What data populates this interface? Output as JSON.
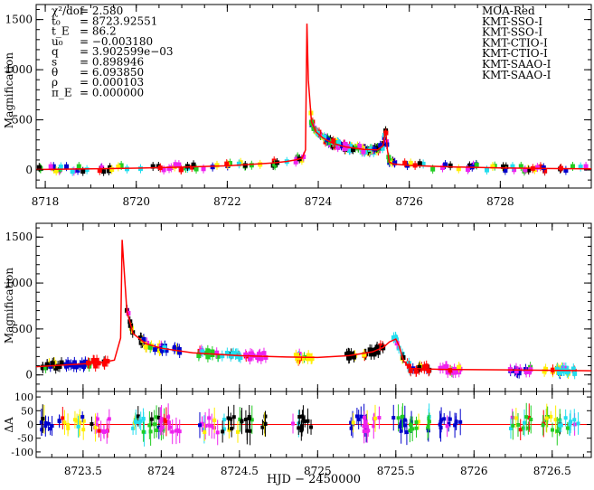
{
  "chart_data": [
    {
      "type": "line",
      "panel": "top",
      "ylabel": "Magnification",
      "xlim": [
        8717.8,
        8730.0
      ],
      "ylim": [
        -180,
        1650
      ],
      "xticks": [
        8718,
        8720,
        8722,
        8724,
        8726,
        8728
      ],
      "yticks": [
        0,
        500,
        1000,
        1500
      ],
      "params": [
        {
          "label": "χ²/dof",
          "value": "= 2.580"
        },
        {
          "label": "t₀",
          "value": "= 8723.92551"
        },
        {
          "label": "t_E",
          "value": "= 86.2"
        },
        {
          "label": "u₀",
          "value": "= −0.003180"
        },
        {
          "label": "q",
          "value": "= 3.902599e−03"
        },
        {
          "label": "s",
          "value": "= 0.898946"
        },
        {
          "label": "θ",
          "value": "= 6.093850"
        },
        {
          "label": "ρ",
          "value": "= 0.000103"
        },
        {
          "label": "π_E",
          "value": "= 0.000000"
        }
      ],
      "legend": [
        {
          "name": "MOA-Red",
          "color": "#000000"
        },
        {
          "name": "KMT-SSO-I",
          "color": "#ff0000"
        },
        {
          "name": "KMT-SSO-I",
          "color": "#22cc22"
        },
        {
          "name": "KMT-CTIO-I",
          "color": "#0000cc"
        },
        {
          "name": "KMT-CTIO-I",
          "color": "#22ddee"
        },
        {
          "name": "KMT-SAAO-I",
          "color": "#ee22ee"
        },
        {
          "name": "KMT-SAAO-I",
          "color": "#ffee00"
        }
      ],
      "model": {
        "color": "#ff0000",
        "x": [
          8717.8,
          8719,
          8720,
          8721,
          8722,
          8722.5,
          8723,
          8723.3,
          8723.5,
          8723.65,
          8723.72,
          8723.75,
          8723.78,
          8723.85,
          8723.95,
          8724.1,
          8724.3,
          8724.6,
          8725.0,
          8725.3,
          8725.42,
          8725.48,
          8725.52,
          8725.56,
          8725.65,
          8726,
          8727,
          8728,
          8729,
          8730.0
        ],
        "y": [
          5,
          12,
          18,
          28,
          42,
          55,
          70,
          85,
          100,
          120,
          200,
          1460,
          900,
          480,
          380,
          320,
          270,
          230,
          205,
          200,
          240,
          400,
          200,
          80,
          60,
          45,
          30,
          20,
          15,
          12
        ]
      }
    },
    {
      "type": "line",
      "panel": "bottom",
      "ylabel": "Magnification",
      "xlim": [
        8723.2,
        8726.75
      ],
      "ylim": [
        -180,
        1650
      ],
      "xticks": [
        8723.5,
        8724,
        8724.5,
        8725,
        8725.5,
        8726,
        8726.5
      ],
      "yticks": [
        0,
        500,
        1000,
        1500
      ],
      "model": {
        "color": "#ff0000",
        "x": [
          8723.2,
          8723.4,
          8723.6,
          8723.7,
          8723.74,
          8723.75,
          8723.76,
          8723.78,
          8723.82,
          8723.9,
          8724.0,
          8724.2,
          8724.5,
          8724.8,
          8725.0,
          8725.2,
          8725.35,
          8725.42,
          8725.46,
          8725.5,
          8725.52,
          8725.55,
          8725.6,
          8725.8,
          8726.2,
          8726.75
        ],
        "y": [
          90,
          110,
          130,
          160,
          400,
          1470,
          1200,
          700,
          450,
          340,
          290,
          240,
          210,
          195,
          190,
          210,
          250,
          300,
          360,
          390,
          320,
          150,
          70,
          60,
          55,
          45
        ]
      }
    },
    {
      "type": "scatter",
      "panel": "residuals",
      "ylabel": "ΔA",
      "xlim": [
        8723.2,
        8726.75
      ],
      "ylim": [
        -120,
        120
      ],
      "ytick_labels": [
        "-100",
        "-50",
        "0",
        "50",
        "100"
      ],
      "xticks": [
        8723.5,
        8724,
        8724.5,
        8725,
        8725.5,
        8726,
        8726.5
      ],
      "xtick_labels": [
        "8723.5",
        "8724",
        "8724.5",
        "8725",
        "8725.5",
        "8726",
        "8726.5"
      ],
      "baseline": 0
    }
  ],
  "bottom_axis": {
    "xlabel": "HJD − 2450000",
    "tick_labels": [
      "8723.5",
      "8724",
      "8724.5",
      "8725",
      "8725.5",
      "8726",
      "8726.5"
    ]
  },
  "top_axis": {
    "tick_labels": [
      "8718",
      "8720",
      "8722",
      "8724",
      "8726",
      "8728"
    ]
  },
  "y_tick_labels": [
    "0",
    "500",
    "1000",
    "1500"
  ]
}
